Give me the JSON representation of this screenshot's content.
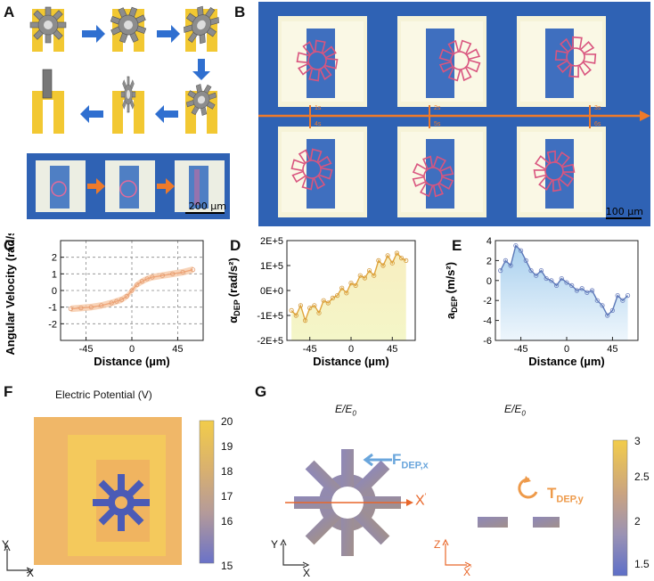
{
  "panel_labels": {
    "A": "A",
    "B": "B",
    "C": "C",
    "D": "D",
    "E": "E",
    "F": "F",
    "G": "G"
  },
  "panelA": {
    "scale_bar": "200 µm"
  },
  "panelB": {
    "scale_bar": "100 µm",
    "frame_marks": [
      "1s",
      "2s",
      "3s",
      "4s",
      "5s",
      "6s"
    ]
  },
  "panelF": {
    "title": "Electric Potential (V)",
    "colorbar_ticks": [
      "20",
      "19",
      "18",
      "17",
      "16",
      "15"
    ],
    "axis_y": "Y",
    "axis_x": "X"
  },
  "panelG": {
    "title_left": "E/E",
    "title_left_sub": "0",
    "title_right": "E/E",
    "title_right_sub": "0",
    "force_label": "F",
    "force_sub": "DEP,x",
    "torque_label": "T",
    "torque_sub": "DEP,y",
    "x_prime": "X",
    "colorbar_ticks": [
      "3",
      "2.5",
      "2",
      "1.5"
    ],
    "axis_y": "Y",
    "axis_x": "X",
    "axis_z": "Z",
    "axis_xp": "X"
  },
  "colors": {
    "accent_orange": "#ee7a2a",
    "micro_blue": "#2f62b4",
    "gear_gray": "#808080",
    "frame_yellow": "#f2c832"
  },
  "chart_data": [
    {
      "id": "C",
      "type": "line",
      "title": "",
      "xlabel": "Distance (µm)",
      "ylabel": "Angular Velocity (rad/s)",
      "xlim": [
        -70,
        70
      ],
      "ylim": [
        -3,
        3
      ],
      "xticks": [
        "-45",
        "0",
        "45"
      ],
      "yticks": [
        "2",
        "1",
        "0",
        "-1",
        "-2"
      ],
      "grid": true,
      "x": [
        -60,
        -50,
        -40,
        -30,
        -20,
        -15,
        -10,
        -5,
        0,
        5,
        10,
        15,
        20,
        30,
        40,
        50,
        60
      ],
      "values": [
        -1.1,
        -1.05,
        -1.0,
        -0.9,
        -0.75,
        -0.65,
        -0.55,
        -0.35,
        0.0,
        0.35,
        0.55,
        0.7,
        0.8,
        0.9,
        1.0,
        1.1,
        1.25
      ],
      "band": 0.2
    },
    {
      "id": "D",
      "type": "area",
      "title": "",
      "xlabel": "Distance (µm)",
      "ylabel": "α",
      "ylabel_sub": "DEP",
      "ylabel_unit": "(rad/s²)",
      "xlim": [
        -70,
        70
      ],
      "ylim": [
        -200000,
        200000
      ],
      "xticks": [
        "-45",
        "0",
        "45"
      ],
      "yticks": [
        "2E+5",
        "1E+5",
        "0E+0",
        "-1E+5",
        "-2E+5"
      ],
      "x": [
        -65,
        -60,
        -55,
        -50,
        -45,
        -40,
        -35,
        -30,
        -25,
        -20,
        -15,
        -10,
        -5,
        0,
        5,
        10,
        15,
        20,
        25,
        30,
        35,
        40,
        45,
        50,
        55,
        60
      ],
      "values": [
        -80000,
        -100000,
        -60000,
        -120000,
        -70000,
        -60000,
        -90000,
        -40000,
        -50000,
        -30000,
        -20000,
        10000,
        -10000,
        30000,
        20000,
        60000,
        50000,
        80000,
        60000,
        120000,
        100000,
        140000,
        110000,
        150000,
        130000,
        120000
      ]
    },
    {
      "id": "E",
      "type": "area",
      "title": "",
      "xlabel": "Distance (µm)",
      "ylabel": "a",
      "ylabel_sub": "DEP",
      "ylabel_unit": "(m/s²)",
      "xlim": [
        -70,
        70
      ],
      "ylim": [
        -6,
        4
      ],
      "xticks": [
        "-45",
        "0",
        "45"
      ],
      "yticks": [
        "4",
        "2",
        "0",
        "-2",
        "-4",
        "-6"
      ],
      "x": [
        -65,
        -60,
        -55,
        -50,
        -45,
        -40,
        -35,
        -30,
        -25,
        -20,
        -15,
        -10,
        -5,
        0,
        5,
        10,
        15,
        20,
        25,
        30,
        35,
        40,
        45,
        50,
        55,
        60
      ],
      "values": [
        1.0,
        2.0,
        1.5,
        3.5,
        3.0,
        2.0,
        1.0,
        0.5,
        1.0,
        0.2,
        0.0,
        -0.5,
        0.2,
        -0.2,
        -0.5,
        -1.0,
        -0.8,
        -1.2,
        -1.0,
        -2.0,
        -2.5,
        -3.5,
        -3.0,
        -1.5,
        -2.0,
        -1.5
      ]
    }
  ]
}
